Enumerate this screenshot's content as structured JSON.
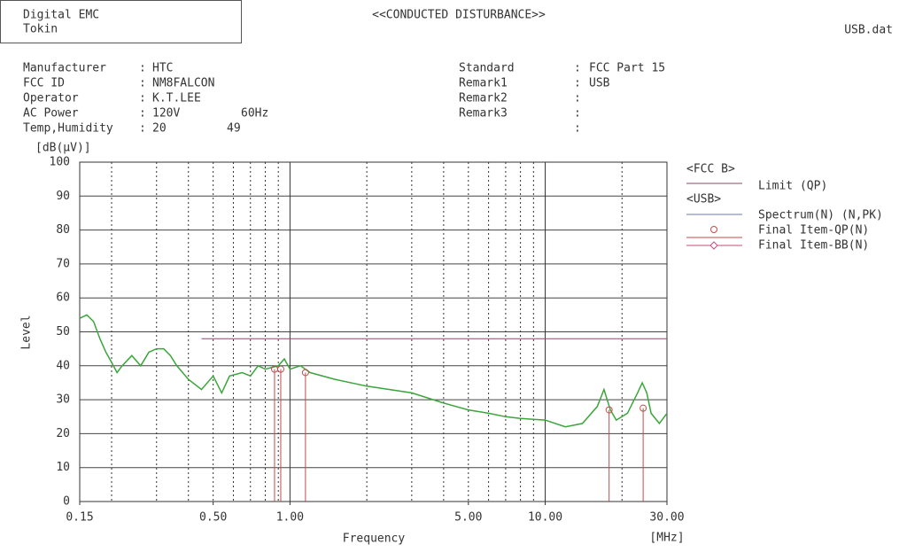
{
  "header": {
    "company": "Digital EMC",
    "site": "Tokin",
    "title": "<<CONDUCTED DISTURBANCE>>",
    "file": "USB.dat"
  },
  "info_left": [
    {
      "label": "Manufacturer",
      "value": "HTC"
    },
    {
      "label": "FCC ID",
      "value": "NM8FALCON"
    },
    {
      "label": "Operator",
      "value": "K.T.LEE"
    },
    {
      "label": "AC Power",
      "value": "120V",
      "extra": "60Hz"
    },
    {
      "label": "Temp,Humidity",
      "value": "20",
      "extra": "49"
    }
  ],
  "info_right": [
    {
      "label": "Standard",
      "value": "FCC Part 15"
    },
    {
      "label": "Remark1",
      "value": "USB"
    },
    {
      "label": "Remark2"
    },
    {
      "label": "Remark3"
    },
    {}
  ],
  "chart_data": {
    "type": "line",
    "y_unit": "[dB(μV)]",
    "y_label": "Level",
    "x_label": "Frequency",
    "x_unit": "[MHz]",
    "xscale": "log",
    "xlim": [
      0.15,
      30
    ],
    "ylim": [
      0,
      100
    ],
    "xticks": [
      0.15,
      {
        "value": 0.5,
        "label": "0.50"
      },
      {
        "value": 1,
        "label": "1.00"
      },
      {
        "value": 5,
        "label": "5.00"
      },
      {
        "value": 10,
        "label": "10.00"
      },
      {
        "value": 30,
        "label": "30.00"
      }
    ],
    "xmajor": [
      1,
      10
    ],
    "xminor": [
      0.2,
      0.3,
      0.4,
      0.5,
      0.6,
      0.7,
      0.8,
      0.9,
      2,
      3,
      4,
      5,
      6,
      7,
      8,
      9,
      20
    ],
    "yticks": [
      0,
      10,
      20,
      30,
      40,
      50,
      60,
      70,
      80,
      90,
      100
    ],
    "grid": true,
    "legend_groups": [
      "<FCC B>",
      "<USB>"
    ],
    "series": [
      {
        "name": "Limit (QP)",
        "color": "#8a4a6a",
        "x": [
          0.45,
          30
        ],
        "values": [
          48,
          48
        ]
      },
      {
        "name": "Spectrum(N) (N,PK)",
        "color": "#3aa63a",
        "x": [
          0.15,
          0.16,
          0.17,
          0.18,
          0.19,
          0.2,
          0.21,
          0.22,
          0.24,
          0.26,
          0.28,
          0.3,
          0.32,
          0.34,
          0.36,
          0.4,
          0.45,
          0.5,
          0.54,
          0.58,
          0.65,
          0.7,
          0.75,
          0.8,
          0.9,
          0.95,
          1.0,
          1.1,
          1.2,
          1.5,
          2,
          3,
          4,
          5,
          6,
          7,
          8,
          10,
          12,
          14,
          16,
          17,
          18,
          19,
          21,
          23,
          24,
          25,
          26,
          28,
          30
        ],
        "values": [
          54,
          55,
          53,
          48,
          44,
          41,
          38,
          40,
          43,
          40,
          44,
          45,
          45,
          43,
          40,
          36,
          33,
          37,
          32,
          37,
          38,
          37,
          40,
          39,
          40,
          42,
          39,
          40,
          38,
          36,
          34,
          32,
          29,
          27,
          26,
          25,
          24.5,
          24,
          22,
          23,
          28,
          33,
          27,
          24,
          26,
          32,
          35,
          32,
          26,
          23,
          26
        ]
      },
      {
        "name": "Final Item-QP(N)",
        "color": "#c84a4a",
        "x": [
          0.87,
          0.92,
          1.15,
          17.8,
          24.2
        ],
        "values": [
          39,
          39,
          38,
          27,
          27.5
        ]
      },
      {
        "name": "Final Item-BB(N)",
        "color": "#c84a7a",
        "x": [],
        "values": []
      }
    ]
  }
}
